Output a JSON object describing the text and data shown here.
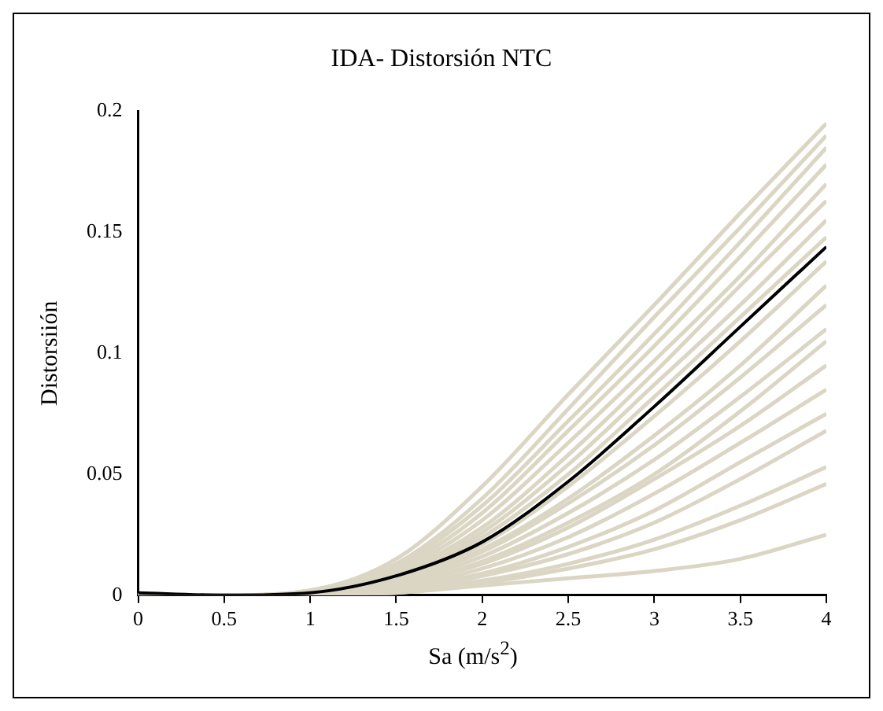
{
  "chart_data": {
    "type": "line",
    "title": "IDA- Distorsión NTC",
    "xlabel": "Sa (m/s$^{2}$)",
    "ylabel": "Distorsiión",
    "x": [
      0,
      0.5,
      1,
      1.5,
      2,
      2.5,
      3,
      3.5,
      4
    ],
    "xlim": [
      0,
      4
    ],
    "xticks": [
      0,
      0.5,
      1,
      1.5,
      2,
      2.5,
      3,
      3.5,
      4
    ],
    "ylim": [
      0,
      0.2
    ],
    "yticks": [
      0,
      0.05,
      0.1,
      0.15,
      0.2
    ],
    "grid": false,
    "legend": false,
    "marker": "none",
    "line_style": "solid",
    "series": [
      {
        "color": "#dbd6c4",
        "values": [
          0,
          0,
          0.002,
          0.015,
          0.045,
          0.083,
          0.12,
          0.158,
          0.195
        ]
      },
      {
        "color": "#dbd6c4",
        "values": [
          0,
          0,
          0.002,
          0.013,
          0.04,
          0.077,
          0.115,
          0.152,
          0.19
        ]
      },
      {
        "color": "#dbd6c4",
        "values": [
          0,
          0,
          0.001,
          0.012,
          0.037,
          0.072,
          0.108,
          0.146,
          0.185
        ]
      },
      {
        "color": "#dbd6c4",
        "values": [
          0,
          0,
          0.001,
          0.011,
          0.034,
          0.068,
          0.103,
          0.14,
          0.178
        ]
      },
      {
        "color": "#dbd6c4",
        "values": [
          0,
          0,
          0.001,
          0.01,
          0.031,
          0.063,
          0.097,
          0.132,
          0.17
        ]
      },
      {
        "color": "#dbd6c4",
        "values": [
          0,
          0,
          0.001,
          0.009,
          0.028,
          0.058,
          0.092,
          0.128,
          0.163
        ]
      },
      {
        "color": "#dbd6c4",
        "values": [
          0,
          0,
          0.001,
          0.008,
          0.026,
          0.054,
          0.087,
          0.12,
          0.155
        ]
      },
      {
        "color": "#dbd6c4",
        "values": [
          0,
          0,
          0.001,
          0.008,
          0.024,
          0.05,
          0.082,
          0.115,
          0.148
        ]
      },
      {
        "color": "#dbd6c4",
        "values": [
          0,
          0,
          0.001,
          0.007,
          0.021,
          0.045,
          0.074,
          0.105,
          0.138
        ]
      },
      {
        "color": "#dbd6c4",
        "values": [
          0,
          0,
          0.001,
          0.006,
          0.019,
          0.04,
          0.066,
          0.095,
          0.128
        ]
      },
      {
        "color": "#dbd6c4",
        "values": [
          0,
          0,
          0.001,
          0.006,
          0.018,
          0.038,
          0.062,
          0.09,
          0.12
        ]
      },
      {
        "color": "#dbd6c4",
        "values": [
          0,
          0,
          0,
          0.005,
          0.016,
          0.034,
          0.056,
          0.082,
          0.11
        ]
      },
      {
        "color": "#dbd6c4",
        "values": [
          0,
          0,
          0,
          0.004,
          0.014,
          0.03,
          0.05,
          0.076,
          0.105
        ]
      },
      {
        "color": "#dbd6c4",
        "values": [
          0,
          0,
          0,
          0.004,
          0.013,
          0.028,
          0.048,
          0.07,
          0.095
        ]
      },
      {
        "color": "#dbd6c4",
        "values": [
          0,
          0,
          0,
          0.003,
          0.011,
          0.024,
          0.042,
          0.063,
          0.085
        ]
      },
      {
        "color": "#dbd6c4",
        "values": [
          0,
          0,
          0,
          0.003,
          0.009,
          0.02,
          0.035,
          0.055,
          0.075
        ]
      },
      {
        "color": "#dbd6c4",
        "values": [
          0,
          0,
          0,
          0.002,
          0.008,
          0.017,
          0.03,
          0.048,
          0.068
        ]
      },
      {
        "color": "#dbd6c4",
        "values": [
          0,
          0,
          0,
          0.002,
          0.006,
          0.013,
          0.023,
          0.037,
          0.053
        ]
      },
      {
        "color": "#dbd6c4",
        "values": [
          0,
          0,
          0,
          0.001,
          0.005,
          0.011,
          0.019,
          0.031,
          0.046
        ]
      },
      {
        "color": "#dbd6c4",
        "values": [
          0,
          0,
          0,
          0.001,
          0.004,
          0.007,
          0.01,
          0.015,
          0.025
        ]
      },
      {
        "color": "#000000",
        "values": [
          0.001,
          0,
          0.001,
          0.008,
          0.022,
          0.047,
          0.078,
          0.111,
          0.144
        ]
      }
    ]
  }
}
